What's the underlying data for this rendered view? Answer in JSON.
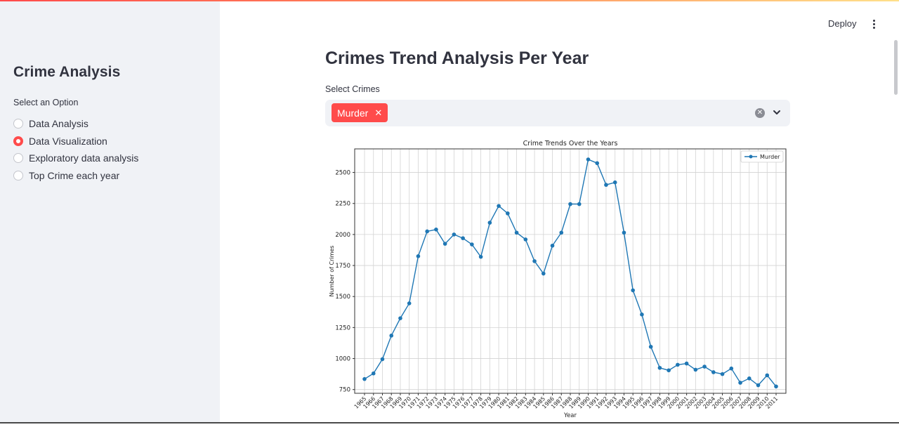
{
  "header": {
    "deploy_label": "Deploy"
  },
  "sidebar": {
    "title": "Crime Analysis",
    "radio_caption": "Select an Option",
    "options": [
      {
        "label": "Data Analysis",
        "selected": false
      },
      {
        "label": "Data Visualization",
        "selected": true
      },
      {
        "label": "Exploratory data analysis",
        "selected": false
      },
      {
        "label": "Top Crime each year",
        "selected": false
      }
    ]
  },
  "main": {
    "title": "Crimes Trend Analysis Per Year",
    "select_label": "Select Crimes",
    "selected_tag": "Murder"
  },
  "colors": {
    "accent": "#ff4b4b",
    "line": "#1f77b4",
    "sidebar_bg": "#f0f2f6"
  },
  "icons": [
    "close-icon",
    "clear-icon",
    "chevron-down-icon",
    "kebab-menu-icon"
  ],
  "chart_data": {
    "type": "line",
    "title": "Crime Trends Over the Years",
    "xlabel": "Year",
    "ylabel": "Number of Crimes",
    "ylim": [
      720,
      2690
    ],
    "yticks": [
      750,
      1000,
      1250,
      1500,
      1750,
      2000,
      2250,
      2500
    ],
    "grid": true,
    "legend": "top-right",
    "x": [
      1965,
      1966,
      1967,
      1968,
      1969,
      1970,
      1971,
      1972,
      1973,
      1974,
      1975,
      1976,
      1977,
      1978,
      1979,
      1980,
      1981,
      1982,
      1983,
      1984,
      1985,
      1986,
      1987,
      1988,
      1989,
      1990,
      1991,
      1992,
      1993,
      1994,
      1995,
      1996,
      1997,
      1998,
      1999,
      2000,
      2001,
      2002,
      2003,
      2004,
      2005,
      2006,
      2007,
      2008,
      2009,
      2010,
      2011
    ],
    "series": [
      {
        "name": "Murder",
        "values": [
          835,
          880,
          995,
          1185,
          1325,
          1445,
          1825,
          2025,
          2040,
          1925,
          2000,
          1970,
          1920,
          1820,
          2095,
          2230,
          2170,
          2015,
          1960,
          1785,
          1685,
          1910,
          2015,
          2245,
          2245,
          2605,
          2575,
          2400,
          2420,
          2015,
          1550,
          1355,
          1095,
          925,
          905,
          950,
          960,
          910,
          935,
          890,
          875,
          920,
          805,
          840,
          785,
          865,
          775
        ]
      }
    ]
  }
}
